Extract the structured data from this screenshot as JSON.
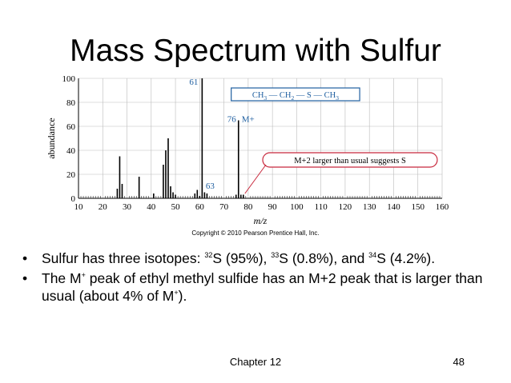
{
  "slide": {
    "title": "Mass Spectrum with Sulfur",
    "copyright": "Copyright © 2010 Pearson Prentice Hall, Inc.",
    "bullets": [
      {
        "marker": "•",
        "parts": [
          "Sulfur has three isotopes: ",
          "32",
          "S (95%), ",
          "33",
          "S (0.8%), and ",
          "34",
          "S (4.2%)."
        ]
      },
      {
        "marker": "•",
        "parts": [
          "The M",
          "+",
          " peak of ethyl methyl sulfide has an M+2 peak that is larger than usual (about 4% of M",
          "+",
          ")."
        ]
      }
    ],
    "footer": {
      "chapter": "Chapter 12",
      "page": "48"
    }
  },
  "chart_data": {
    "type": "bar",
    "xlabel": "m/z",
    "ylabel": "abundance",
    "xlim": [
      10,
      160
    ],
    "ylim": [
      0,
      100
    ],
    "xticks": [
      10,
      20,
      30,
      40,
      50,
      60,
      70,
      80,
      90,
      100,
      110,
      120,
      130,
      140,
      150,
      160
    ],
    "yticks": [
      0,
      20,
      40,
      60,
      80,
      100
    ],
    "grid": true,
    "peaks": [
      {
        "x": 26,
        "y": 8
      },
      {
        "x": 27,
        "y": 35
      },
      {
        "x": 28,
        "y": 12
      },
      {
        "x": 35,
        "y": 18
      },
      {
        "x": 41,
        "y": 4
      },
      {
        "x": 45,
        "y": 28
      },
      {
        "x": 46,
        "y": 40
      },
      {
        "x": 47,
        "y": 50
      },
      {
        "x": 48,
        "y": 10
      },
      {
        "x": 49,
        "y": 5
      },
      {
        "x": 50,
        "y": 3
      },
      {
        "x": 58,
        "y": 4
      },
      {
        "x": 59,
        "y": 7
      },
      {
        "x": 60,
        "y": 2
      },
      {
        "x": 61,
        "y": 100
      },
      {
        "x": 62,
        "y": 5
      },
      {
        "x": 63,
        "y": 4
      },
      {
        "x": 75,
        "y": 3
      },
      {
        "x": 76,
        "y": 65
      },
      {
        "x": 77,
        "y": 3
      },
      {
        "x": 78,
        "y": 3
      }
    ],
    "annotations": {
      "peak_61": "61",
      "peak_76": "76",
      "peak_63": "63",
      "molecular_ion": "M+",
      "structure": [
        "CH",
        "3",
        " — CH",
        "2",
        " — S — CH",
        "3"
      ],
      "callout": "M+2 larger than usual suggests S"
    },
    "colors": {
      "axis": "#000000",
      "grid": "#bbbbbb",
      "annotation_text": "#1f5fa0",
      "callout": "#c8283c",
      "structure_box": "#1f5fa0"
    }
  }
}
